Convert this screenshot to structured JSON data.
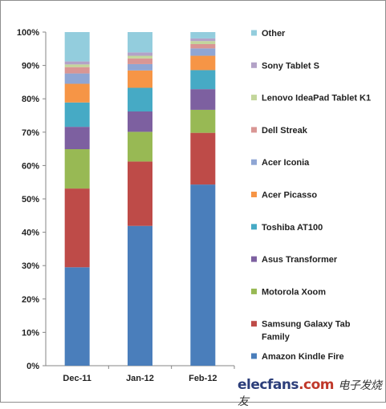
{
  "chart_data": {
    "type": "bar",
    "stacked": true,
    "percent": true,
    "categories": [
      "Dec-11",
      "Jan-12",
      "Feb-12"
    ],
    "ylim": [
      0,
      100
    ],
    "yticks": [
      "0%",
      "10%",
      "20%",
      "30%",
      "40%",
      "50%",
      "60%",
      "70%",
      "80%",
      "90%",
      "100%"
    ],
    "legend_position": "right",
    "series": [
      {
        "name": "Amazon Kindle Fire",
        "color": "#4a7ebb",
        "values": [
          29.5,
          41.9,
          54.3
        ]
      },
      {
        "name": "Samsung Galaxy Tab Family",
        "color": "#be4b48",
        "values": [
          23.6,
          19.3,
          15.5
        ]
      },
      {
        "name": "Motorola Xoom",
        "color": "#98b954",
        "values": [
          11.8,
          8.9,
          6.9
        ]
      },
      {
        "name": "Asus Transformer",
        "color": "#7d60a0",
        "values": [
          6.7,
          6.1,
          6.2
        ]
      },
      {
        "name": "Toshiba AT100",
        "color": "#46aac5",
        "values": [
          7.3,
          7.1,
          5.7
        ]
      },
      {
        "name": "Acer Picasso",
        "color": "#f69546",
        "values": [
          5.6,
          5.2,
          4.3
        ]
      },
      {
        "name": "Acer Iconia",
        "color": "#8fa6d4",
        "values": [
          3.1,
          1.9,
          2.2
        ]
      },
      {
        "name": "Dell Streak",
        "color": "#d99694",
        "values": [
          1.9,
          1.7,
          1.3
        ]
      },
      {
        "name": "Lenovo IdeaPad Tablet K1",
        "color": "#c3d69b",
        "values": [
          0.8,
          0.8,
          0.9
        ]
      },
      {
        "name": "Sony Tablet S",
        "color": "#b3a2c7",
        "values": [
          0.9,
          1.0,
          0.8
        ]
      },
      {
        "name": "Other",
        "color": "#93cddd",
        "values": [
          8.8,
          6.1,
          1.9
        ]
      }
    ]
  },
  "watermark": {
    "brand": "elecfans",
    "domain": ".com",
    "chinese": "电子发烧友"
  }
}
